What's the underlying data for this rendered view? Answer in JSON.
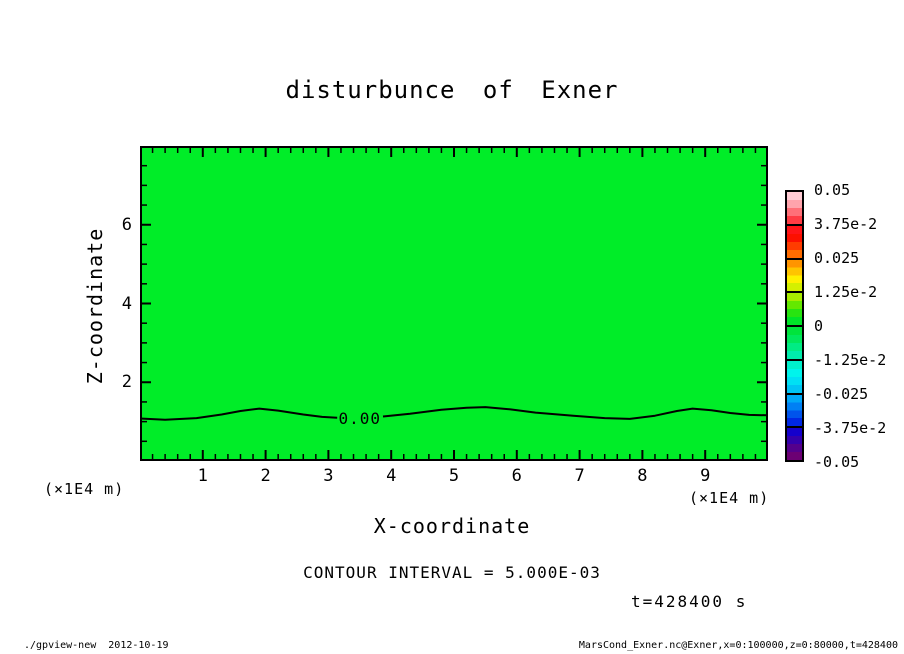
{
  "colors": {
    "background": "#ffffff",
    "plot_fill": "#00ED28",
    "frame": "#000000"
  },
  "chart_data": {
    "type": "heatmap",
    "title": "disturbunce of Exner",
    "xlabel": "X-coordinate",
    "ylabel": "Z-coordinate",
    "x_unit": "(×1E4 m)",
    "y_unit": "(×1E4 m)",
    "xlim": [
      0,
      10
    ],
    "ylim": [
      0,
      8
    ],
    "x_major_ticks": [
      1,
      2,
      3,
      4,
      5,
      6,
      7,
      8,
      9
    ],
    "x_minor_step": 0.2,
    "y_major_ticks": [
      2,
      4,
      6
    ],
    "y_minor_step": 0.5,
    "grid": false,
    "field_description": "uniform near-zero Exner disturbance (|value| < contour interval) filling the whole domain in green; a single 0.00 contour undulates near z ≈ 1.2 ×1E4 m",
    "fill_uniform_value": 0,
    "zero_contour": {
      "label": "0.00",
      "label_x": 3.5,
      "label_z": 1.09,
      "segments": [
        [
          [
            0,
            1.08
          ],
          [
            0.4,
            1.05
          ],
          [
            0.9,
            1.09
          ],
          [
            1.3,
            1.18
          ],
          [
            1.6,
            1.27
          ],
          [
            1.9,
            1.33
          ],
          [
            2.2,
            1.28
          ],
          [
            2.6,
            1.18
          ],
          [
            2.9,
            1.12
          ],
          [
            3.14,
            1.1
          ]
        ],
        [
          [
            3.87,
            1.13
          ],
          [
            4.3,
            1.2
          ],
          [
            4.8,
            1.3
          ],
          [
            5.2,
            1.35
          ],
          [
            5.5,
            1.37
          ],
          [
            5.9,
            1.31
          ],
          [
            6.3,
            1.23
          ],
          [
            6.9,
            1.15
          ],
          [
            7.4,
            1.09
          ],
          [
            7.8,
            1.07
          ],
          [
            8.2,
            1.15
          ],
          [
            8.55,
            1.27
          ],
          [
            8.8,
            1.33
          ],
          [
            9.1,
            1.29
          ],
          [
            9.4,
            1.22
          ],
          [
            9.7,
            1.17
          ],
          [
            10,
            1.16
          ]
        ]
      ]
    },
    "contour_interval_text": "CONTOUR INTERVAL = 5.000E-03",
    "time_text": "t=428400 s",
    "colorbar": {
      "range": [
        -0.05,
        0.05
      ],
      "labels": [
        "0.05",
        "3.75e-2",
        "0.025",
        "1.25e-2",
        "0",
        "-1.25e-2",
        "-0.025",
        "-3.75e-2",
        "-0.05"
      ],
      "segments": [
        [
          "#ffccd4",
          "#ffa4ac",
          "#ff7078",
          "#ff3c44"
        ],
        [
          "#ff1418",
          "#fc1000",
          "#ff3c00",
          "#ff6c00"
        ],
        [
          "#ff9400",
          "#ffc400",
          "#fff000",
          "#d4f000"
        ],
        [
          "#a8ec00",
          "#64e800",
          "#28e410",
          "#00e428"
        ],
        [
          "#00e43c",
          "#00e85c",
          "#00ec84",
          "#00ecac"
        ],
        [
          "#00f0cc",
          "#00f4ec",
          "#00e0f4",
          "#00c4f4"
        ],
        [
          "#00a8f8",
          "#0080f4",
          "#0054ec",
          "#0028e4"
        ],
        [
          "#1400cc",
          "#3400ac",
          "#54008c",
          "#6c0074"
        ]
      ]
    }
  },
  "footer": {
    "left": "./gpview-new  2012-10-19",
    "right": "MarsCond_Exner.nc@Exner,x=0:100000,z=0:80000,t=428400"
  }
}
